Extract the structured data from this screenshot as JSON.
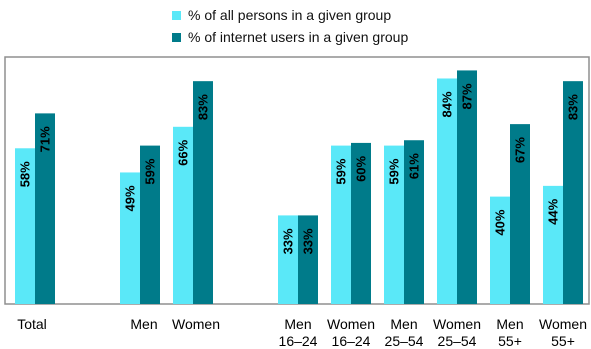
{
  "colors": {
    "series_a": "#5ae8f8",
    "series_b": "#007b8a",
    "frame": "#8f8f8f"
  },
  "chart_data": {
    "type": "bar",
    "title": "",
    "xlabel": "",
    "ylabel": "",
    "ylim": [
      0,
      92
    ],
    "grid": false,
    "legend_position": "top",
    "categories": [
      {
        "key": "total",
        "lines": [
          "Total"
        ],
        "a": 58,
        "b": 71
      },
      {
        "key": "men",
        "lines": [
          "Men"
        ],
        "a": 49,
        "b": 59
      },
      {
        "key": "women",
        "lines": [
          "Women"
        ],
        "a": 66,
        "b": 83
      },
      {
        "key": "men-16-24",
        "lines": [
          "Men",
          "16–24"
        ],
        "a": 33,
        "b": 33
      },
      {
        "key": "women-16-24",
        "lines": [
          "Women",
          "16–24"
        ],
        "a": 59,
        "b": 60
      },
      {
        "key": "men-25-54",
        "lines": [
          "Men",
          "25–54"
        ],
        "a": 59,
        "b": 61
      },
      {
        "key": "women-25-54",
        "lines": [
          "Women",
          "25–54"
        ],
        "a": 84,
        "b": 87
      },
      {
        "key": "men-55plus",
        "lines": [
          "Men",
          "55+"
        ],
        "a": 40,
        "b": 67
      },
      {
        "key": "women-55plus",
        "lines": [
          "Women",
          "55+"
        ],
        "a": 44,
        "b": 83
      }
    ],
    "series": [
      {
        "name": "% of all persons in a given group",
        "key": "a",
        "color": "#5ae8f8"
      },
      {
        "name": "% of internet users in a given group",
        "key": "b",
        "color": "#007b8a"
      }
    ]
  }
}
